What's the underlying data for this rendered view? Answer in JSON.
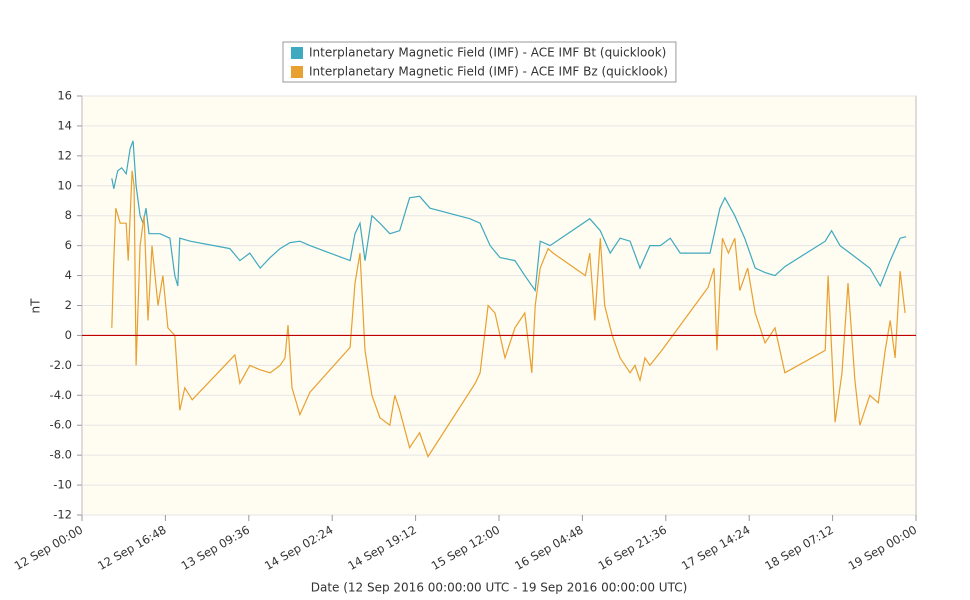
{
  "chart_data": {
    "type": "line",
    "ylabel": "nT",
    "xlabel": "Date (12 Sep 2016 00:00:00 UTC - 19 Sep 2016 00:00:00 UTC)",
    "xlim": [
      "2016-09-12T00:00",
      "2016-09-19T00:00"
    ],
    "xticks": [
      {
        "value": "2016-09-12T00:00",
        "label": "12 Sep 00:00"
      },
      {
        "value": "2016-09-12T16:48",
        "label": "12 Sep 16:48"
      },
      {
        "value": "2016-09-13T09:36",
        "label": "13 Sep 09:36"
      },
      {
        "value": "2016-09-14T02:24",
        "label": "14 Sep 02:24"
      },
      {
        "value": "2016-09-14T19:12",
        "label": "14 Sep 19:12"
      },
      {
        "value": "2016-09-15T12:00",
        "label": "15 Sep 12:00"
      },
      {
        "value": "2016-09-16T04:48",
        "label": "16 Sep 04:48"
      },
      {
        "value": "2016-09-16T21:36",
        "label": "16 Sep 21:36"
      },
      {
        "value": "2016-09-17T14:24",
        "label": "17 Sep 14:24"
      },
      {
        "value": "2016-09-18T07:12",
        "label": "18 Sep 07:12"
      },
      {
        "value": "2016-09-19T00:00",
        "label": "19 Sep 00:00"
      }
    ],
    "ylim": [
      -12,
      16
    ],
    "yticks": [
      16,
      14,
      12,
      10,
      8,
      6,
      4,
      2,
      0,
      {
        "value": -2,
        "label": "-2.0"
      },
      {
        "value": -4,
        "label": "-4.0"
      },
      {
        "value": -6,
        "label": "-6.0"
      },
      {
        "value": -8,
        "label": "-8.0"
      },
      -10,
      -12
    ],
    "grid": true,
    "zero_line": {
      "value": 0,
      "color": "#c00000"
    },
    "legend": "top",
    "series": [
      {
        "name": "Interplanetary Magnetic Field (IMF) - ACE IMF Bt (quicklook)",
        "color": "#3fa9bf",
        "x": [
          "2016-09-12T06:00",
          "2016-09-12T06:24",
          "2016-09-12T07:12",
          "2016-09-12T08:00",
          "2016-09-12T08:54",
          "2016-09-12T09:42",
          "2016-09-12T10:18",
          "2016-09-12T10:54",
          "2016-09-12T11:42",
          "2016-09-12T12:18",
          "2016-09-12T12:54",
          "2016-09-12T13:30",
          "2016-09-12T15:42",
          "2016-09-12T17:42",
          "2016-09-12T18:42",
          "2016-09-12T19:18",
          "2016-09-12T19:42",
          "2016-09-12T21:48",
          "2016-09-13T05:48",
          "2016-09-13T07:48",
          "2016-09-13T09:48",
          "2016-09-13T11:54",
          "2016-09-13T13:54",
          "2016-09-13T15:54",
          "2016-09-13T17:54",
          "2016-09-13T19:54",
          "2016-09-13T21:54",
          "2016-09-14T06:00",
          "2016-09-14T07:00",
          "2016-09-14T08:00",
          "2016-09-14T09:00",
          "2016-09-14T10:24",
          "2016-09-14T12:00",
          "2016-09-14T14:00",
          "2016-09-14T16:00",
          "2016-09-14T18:00",
          "2016-09-14T20:00",
          "2016-09-14T22:06",
          "2016-09-15T06:06",
          "2016-09-15T08:12",
          "2016-09-15T10:12",
          "2016-09-15T12:12",
          "2016-09-15T15:12",
          "2016-09-15T17:12",
          "2016-09-15T19:18",
          "2016-09-15T20:18",
          "2016-09-15T22:18",
          "2016-09-16T06:18",
          "2016-09-16T08:24",
          "2016-09-16T10:24",
          "2016-09-16T12:24",
          "2016-09-16T14:24",
          "2016-09-16T16:24",
          "2016-09-16T18:24",
          "2016-09-16T20:30",
          "2016-09-16T22:30",
          "2016-09-17T00:30",
          "2016-09-17T06:30",
          "2016-09-17T08:30",
          "2016-09-17T09:30",
          "2016-09-17T11:30",
          "2016-09-17T13:30",
          "2016-09-17T15:36",
          "2016-09-17T17:36",
          "2016-09-17T19:36",
          "2016-09-17T21:36",
          "2016-09-18T05:42",
          "2016-09-18T07:00",
          "2016-09-18T08:42",
          "2016-09-18T10:42",
          "2016-09-18T12:42",
          "2016-09-18T14:42",
          "2016-09-18T16:48",
          "2016-09-18T18:48",
          "2016-09-18T20:48",
          "2016-09-18T22:00"
        ],
        "values": [
          10.5,
          9.8,
          11,
          11.2,
          10.8,
          12.5,
          13,
          10,
          8,
          7.5,
          8.5,
          6.8,
          6.8,
          6.5,
          4,
          3.3,
          6.5,
          6.3,
          5.8,
          5,
          5.5,
          4.5,
          5.2,
          5.8,
          6.2,
          6.3,
          6,
          5,
          6.8,
          7.5,
          5,
          8,
          7.5,
          6.8,
          7,
          9.2,
          9.3,
          8.5,
          7.8,
          7.5,
          6,
          5.2,
          5,
          4,
          3,
          6.3,
          6,
          7.8,
          7,
          5.5,
          6.5,
          6.3,
          4.5,
          6,
          6,
          6.5,
          5.5,
          5.5,
          8.5,
          9.2,
          8,
          6.5,
          4.5,
          4.2,
          4,
          4.6,
          6.3,
          7,
          6,
          5.5,
          5,
          4.5,
          3.3,
          5,
          6.5,
          6.6
        ]
      },
      {
        "name": "Interplanetary Magnetic Field (IMF) - ACE IMF Bz (quicklook)",
        "color": "#e8a030",
        "x": [
          "2016-09-12T06:00",
          "2016-09-12T06:24",
          "2016-09-12T06:48",
          "2016-09-12T07:42",
          "2016-09-12T08:54",
          "2016-09-12T09:18",
          "2016-09-12T10:06",
          "2016-09-12T10:30",
          "2016-09-12T10:54",
          "2016-09-12T11:42",
          "2016-09-12T12:30",
          "2016-09-12T13:18",
          "2016-09-12T14:06",
          "2016-09-12T15:18",
          "2016-09-12T16:18",
          "2016-09-12T17:18",
          "2016-09-12T18:42",
          "2016-09-12T19:42",
          "2016-09-12T20:42",
          "2016-09-12T22:12",
          "2016-09-13T06:48",
          "2016-09-13T07:48",
          "2016-09-13T09:48",
          "2016-09-13T11:54",
          "2016-09-13T13:54",
          "2016-09-13T15:54",
          "2016-09-13T16:54",
          "2016-09-13T17:30",
          "2016-09-13T18:18",
          "2016-09-13T19:54",
          "2016-09-13T21:54",
          "2016-09-14T06:00",
          "2016-09-14T07:00",
          "2016-09-14T08:00",
          "2016-09-14T09:00",
          "2016-09-14T10:24",
          "2016-09-14T12:00",
          "2016-09-14T14:00",
          "2016-09-14T15:00",
          "2016-09-14T16:00",
          "2016-09-14T18:00",
          "2016-09-14T20:00",
          "2016-09-14T21:42",
          "2016-09-15T07:12",
          "2016-09-15T08:12",
          "2016-09-15T09:48",
          "2016-09-15T11:12",
          "2016-09-15T12:12",
          "2016-09-15T13:12",
          "2016-09-15T15:12",
          "2016-09-15T17:12",
          "2016-09-15T18:36",
          "2016-09-15T19:18",
          "2016-09-15T20:18",
          "2016-09-15T21:54",
          "2016-09-15T22:54",
          "2016-09-16T05:24",
          "2016-09-16T06:18",
          "2016-09-16T07:18",
          "2016-09-16T08:24",
          "2016-09-16T09:18",
          "2016-09-16T10:48",
          "2016-09-16T12:24",
          "2016-09-16T14:24",
          "2016-09-16T15:24",
          "2016-09-16T16:24",
          "2016-09-16T17:24",
          "2016-09-16T18:24",
          "2016-09-16T20:48",
          "2016-09-17T06:06",
          "2016-09-17T07:18",
          "2016-09-17T07:54",
          "2016-09-17T09:00",
          "2016-09-17T10:12",
          "2016-09-17T11:30",
          "2016-09-17T12:30",
          "2016-09-17T14:06",
          "2016-09-17T15:36",
          "2016-09-17T17:36",
          "2016-09-17T19:36",
          "2016-09-17T21:36",
          "2016-09-18T05:42",
          "2016-09-18T06:18",
          "2016-09-18T07:42",
          "2016-09-18T09:06",
          "2016-09-18T10:18",
          "2016-09-18T11:42",
          "2016-09-18T12:42",
          "2016-09-18T14:42",
          "2016-09-18T16:24",
          "2016-09-18T17:48",
          "2016-09-18T18:48",
          "2016-09-18T19:48",
          "2016-09-18T20:48",
          "2016-09-18T21:48"
        ],
        "values": [
          0.5,
          5,
          8.5,
          7.5,
          7.5,
          5,
          11,
          10,
          -2,
          6,
          8,
          1,
          6,
          2,
          4,
          0.5,
          0,
          -5,
          -3.5,
          -4.3,
          -1.3,
          -3.2,
          -2,
          -2.3,
          -2.5,
          -2,
          -1.5,
          0.7,
          -3.5,
          -5.3,
          -3.8,
          -0.8,
          3.5,
          5.5,
          -1,
          -4,
          -5.5,
          -6,
          -4,
          -5,
          -7.5,
          -6.5,
          -8.1,
          -3.2,
          -2.5,
          2,
          1.5,
          0,
          -1.5,
          0.5,
          1.5,
          -2.5,
          2,
          4.5,
          5.8,
          5.5,
          4,
          5.5,
          1,
          6.5,
          2,
          0,
          -1.5,
          -2.5,
          -2,
          -3,
          -1.5,
          -2,
          -1,
          3.2,
          4.5,
          -1,
          6.5,
          5.5,
          6.5,
          3,
          4.5,
          1.5,
          -0.5,
          0.5,
          -2.5,
          -1,
          4,
          -5.8,
          -2.5,
          3.5,
          -3,
          -6,
          -4,
          -4.5,
          -1,
          1,
          -1.5,
          4.3,
          1.5
        ]
      }
    ]
  }
}
